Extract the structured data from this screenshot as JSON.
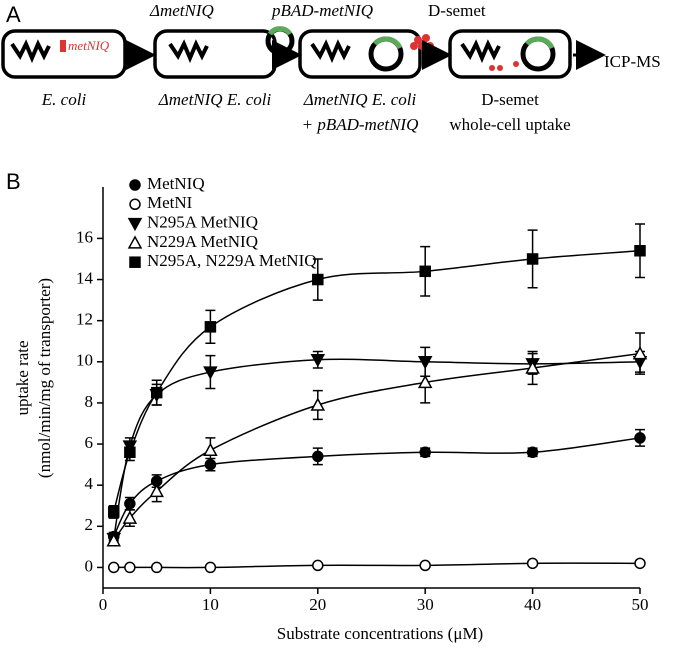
{
  "panel_a": {
    "label": "A",
    "step1_label": "ΔmetNIQ",
    "step2_label": "pBAD-metNIQ",
    "step3_label": "D-semet",
    "gene_label": "metNIQ",
    "cell1": "E. coli",
    "cell2": "ΔmetNIQ E. coli",
    "cell3_line1": "ΔmetNIQ E. coli",
    "cell3_line2": "+ pBAD-metNIQ",
    "cell4_line1": "D-semet",
    "cell4_line2": "whole-cell uptake",
    "output": "ICP-MS"
  },
  "chart_data": {
    "type": "scatter",
    "panel_label": "B",
    "x_label": "Substrate concentrations (μM)",
    "y_label": [
      "uptake rate",
      "(nmol/min/mg of transporter)"
    ],
    "x": [
      1,
      2.5,
      5,
      10,
      20,
      30,
      40,
      50
    ],
    "series": [
      {
        "name": "MetNIQ",
        "color": "#000000",
        "marker": "circle-filled",
        "values": [
          1.5,
          3.1,
          4.2,
          5.0,
          5.4,
          5.6,
          5.6,
          6.3
        ],
        "errors": [
          0.2,
          0.3,
          0.3,
          0.3,
          0.4,
          0.2,
          0.2,
          0.4
        ]
      },
      {
        "name": "MetNI",
        "color": "#000000",
        "marker": "circle-open",
        "values": [
          0,
          0,
          0,
          0,
          0.1,
          0.1,
          0.2,
          0.2
        ],
        "errors": [
          0.05,
          0.05,
          0.05,
          0.05,
          0.05,
          0.05,
          0.05,
          0.05
        ]
      },
      {
        "name": "N295A MetNIQ",
        "color": "#000000",
        "marker": "triangle-down-filled",
        "values": [
          1.4,
          5.9,
          8.4,
          9.5,
          10.1,
          10.0,
          9.9,
          10.0
        ],
        "errors": [
          0.2,
          0.4,
          0.5,
          0.8,
          0.4,
          0.7,
          0.5,
          0.5
        ]
      },
      {
        "name": "N229A MetNIQ",
        "color": "#000000",
        "marker": "triangle-up-open",
        "values": [
          1.3,
          2.4,
          3.7,
          5.7,
          7.9,
          9.0,
          9.7,
          10.4
        ],
        "errors": [
          0.2,
          0.4,
          0.5,
          0.6,
          0.7,
          1.0,
          0.8,
          1.0
        ]
      },
      {
        "name": "N295A, N229A MetNIQ",
        "color": "#000000",
        "marker": "square-filled",
        "values": [
          2.7,
          5.6,
          8.5,
          11.7,
          14.0,
          14.4,
          15.0,
          15.4
        ],
        "errors": [
          0.3,
          0.4,
          0.6,
          0.8,
          1.0,
          1.2,
          1.4,
          1.3
        ]
      }
    ],
    "xlim": [
      0,
      50
    ],
    "xticks": [
      0,
      10,
      20,
      30,
      40,
      50
    ],
    "ylim": [
      -1,
      18.5
    ],
    "yticks": [
      0,
      2,
      4,
      6,
      8,
      10,
      12,
      14,
      16
    ],
    "grid": false,
    "legend": "upper-left"
  }
}
